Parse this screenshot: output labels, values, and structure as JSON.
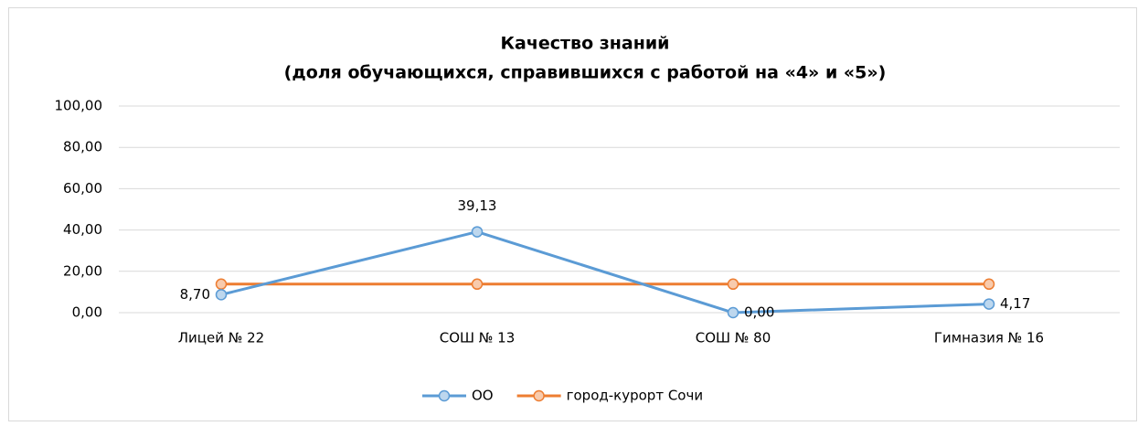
{
  "chart_data": {
    "type": "line",
    "title": "Качество знаний",
    "subtitle": "(доля обучающихся, справившихся с работой на «4» и «5»)",
    "categories": [
      "Лицей № 22",
      "СОШ № 13",
      "СОШ № 80",
      "Гимназия № 16"
    ],
    "series": [
      {
        "name": "ОО",
        "color": "#5b9bd5",
        "values": [
          8.7,
          39.13,
          0,
          4.17
        ],
        "value_labels": [
          "8,70",
          "39,13",
          "0,00",
          "4,17"
        ]
      },
      {
        "name": "город-курорт Сочи",
        "color": "#ed7d31",
        "values": [
          13.8,
          13.8,
          13.8,
          13.8
        ]
      }
    ],
    "ylim": [
      0,
      100
    ],
    "yticks": [
      {
        "value": 0,
        "label": "0,00"
      },
      {
        "value": 20,
        "label": "20,00"
      },
      {
        "value": 40,
        "label": "40,00"
      },
      {
        "value": 60,
        "label": "60,00"
      },
      {
        "value": 80,
        "label": "80,00"
      },
      {
        "value": 100,
        "label": "100,00"
      }
    ],
    "grid": true,
    "legend": "bottom"
  }
}
